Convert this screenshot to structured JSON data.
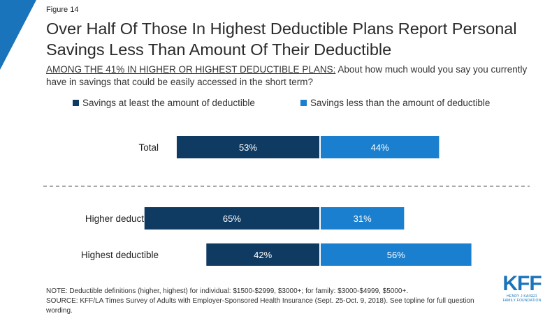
{
  "header": {
    "figure_label": "Figure 14",
    "title": "Over Half Of Those In Highest Deductible Plans Report Personal Savings Less Than Amount Of Their Deductible",
    "subtitle_underlined": "AMONG THE 41% IN HIGHER OR HIGHEST DEDUCTIBLE PLANS:",
    "subtitle_rest": " About how much would you say you currently have in savings that could be easily accessed in the short term?"
  },
  "colors": {
    "corner_accent": "#1a74bb",
    "series_dark": "#0f3a62",
    "series_light": "#1a7fce",
    "divider": "#555555"
  },
  "chart_data": {
    "type": "bar",
    "orientation": "horizontal-diverging",
    "categories": [
      "Total",
      "Higher deductible",
      "Highest deductible"
    ],
    "series": [
      {
        "name": "Savings at least the amount of deductible",
        "values": [
          53,
          65,
          42
        ],
        "labels": [
          "53%",
          "65%",
          "42%"
        ]
      },
      {
        "name": "Savings less than the amount of deductible",
        "values": [
          44,
          31,
          56
        ],
        "labels": [
          "44%",
          "31%",
          "56%"
        ]
      }
    ],
    "legend_position": "top",
    "divider_after_category": "Total",
    "grid": false
  },
  "footer": {
    "note": "NOTE: Deductible definitions (higher, highest) for individual: $1500-$2999, $3000+; for family: $3000-$4999, $5000+.",
    "source": "SOURCE: KFF/LA Times Survey of Adults with Employer-Sponsored Health Insurance (Sept. 25-Oct. 9, 2018). See topline for full question wording."
  },
  "logo": {
    "main": "KFF",
    "sub_line1": "HENRY J KAISER",
    "sub_line2": "FAMILY FOUNDATION"
  }
}
